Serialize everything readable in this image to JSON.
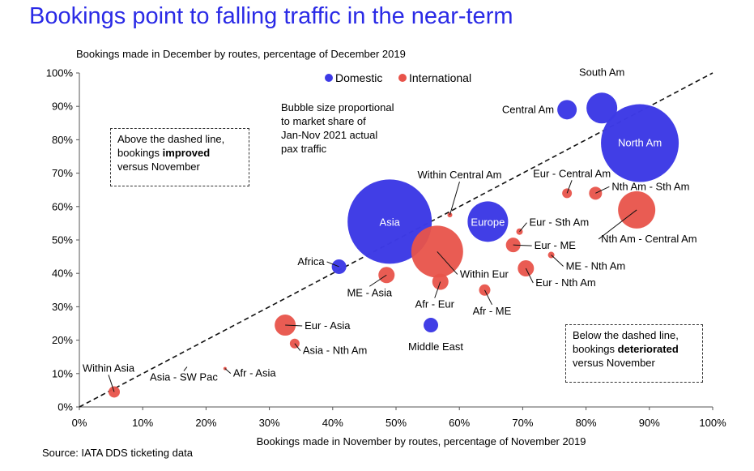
{
  "title": "Bookings point to falling traffic in the near-term",
  "subtitle": "Bookings made in December by routes, percentage of December 2019",
  "source": "Source: IATA DDS ticketing data",
  "colors": {
    "domestic": "#3d3ae6",
    "international": "#e8534a",
    "title": "#2a2ae6"
  },
  "annotations": {
    "bubble_size": [
      "Bubble size proportional",
      "to market share of",
      "Jan-Nov 2021 actual",
      "pax traffic"
    ],
    "above": {
      "line1": "Above the dashed line,",
      "pre": "bookings ",
      "bold": "improved",
      "line3": "versus November"
    },
    "below": {
      "line1": "Below the dashed line,",
      "pre": "bookings ",
      "bold": "deteriorated",
      "line3": "versus November"
    }
  },
  "chart_data": {
    "type": "scatter",
    "xlabel": "Bookings made in November by routes, percentage of November 2019",
    "ylabel": "Bookings made in December by routes, percentage of December 2019",
    "xlim": [
      0,
      100
    ],
    "ylim": [
      0,
      100
    ],
    "xticks": [
      "0%",
      "10%",
      "20%",
      "30%",
      "40%",
      "50%",
      "60%",
      "70%",
      "80%",
      "90%",
      "100%"
    ],
    "yticks": [
      "0%",
      "10%",
      "20%",
      "30%",
      "40%",
      "50%",
      "60%",
      "70%",
      "80%",
      "90%",
      "100%"
    ],
    "reference_line": "y = x (dashed)",
    "legend": [
      {
        "name": "Domestic",
        "color": "#3d3ae6"
      },
      {
        "name": "International",
        "color": "#e8534a"
      }
    ],
    "legend_position": "top-center",
    "points": [
      {
        "label": "South Am",
        "x": 82.5,
        "y": 89.5,
        "category": "Domestic",
        "r": 19
      },
      {
        "label": "Central Am",
        "x": 77,
        "y": 89,
        "category": "Domestic",
        "r": 12
      },
      {
        "label": "North Am",
        "x": 88.5,
        "y": 79,
        "category": "Domestic",
        "r": 48
      },
      {
        "label": "Asia",
        "x": 49,
        "y": 55.5,
        "category": "Domestic",
        "r": 52
      },
      {
        "label": "Europe",
        "x": 64.5,
        "y": 55.5,
        "category": "Domestic",
        "r": 25
      },
      {
        "label": "Africa",
        "x": 41,
        "y": 42,
        "category": "Domestic",
        "r": 9
      },
      {
        "label": "Middle East",
        "x": 55.5,
        "y": 24.5,
        "category": "Domestic",
        "r": 9
      },
      {
        "label": "Eur - Central Am",
        "x": 77,
        "y": 64,
        "category": "International",
        "r": 6
      },
      {
        "label": "Nth Am - Sth Am",
        "x": 81.5,
        "y": 64,
        "category": "International",
        "r": 8
      },
      {
        "label": "Nth Am - Central Am",
        "x": 88,
        "y": 59,
        "category": "International",
        "r": 23
      },
      {
        "label": "Within Central Am",
        "x": 58.5,
        "y": 57.5,
        "category": "International",
        "r": 3
      },
      {
        "label": "Eur - Sth Am",
        "x": 69.5,
        "y": 52.5,
        "category": "International",
        "r": 4
      },
      {
        "label": "Eur - ME",
        "x": 68.5,
        "y": 48.5,
        "category": "International",
        "r": 9
      },
      {
        "label": "Within Eur",
        "x": 56.5,
        "y": 46.5,
        "category": "International",
        "r": 32
      },
      {
        "label": "ME - Nth Am",
        "x": 74.5,
        "y": 45.5,
        "category": "International",
        "r": 4
      },
      {
        "label": "Eur - Nth Am",
        "x": 70.5,
        "y": 41.5,
        "category": "International",
        "r": 10
      },
      {
        "label": "ME - Asia",
        "x": 48.5,
        "y": 39.5,
        "category": "International",
        "r": 10
      },
      {
        "label": "Afr - Eur",
        "x": 57,
        "y": 37.5,
        "category": "International",
        "r": 10
      },
      {
        "label": "Afr - ME",
        "x": 64,
        "y": 35,
        "category": "International",
        "r": 7
      },
      {
        "label": "Eur - Asia",
        "x": 32.5,
        "y": 24.5,
        "category": "International",
        "r": 13
      },
      {
        "label": "Asia - Nth Am",
        "x": 34,
        "y": 19,
        "category": "International",
        "r": 6
      },
      {
        "label": "Afr - Asia",
        "x": 23,
        "y": 11.5,
        "category": "International",
        "r": 2
      },
      {
        "label": "Asia - SW Pac",
        "x": 17,
        "y": 12,
        "category": "International",
        "r": 0
      },
      {
        "label": "Within Asia",
        "x": 5.5,
        "y": 4.5,
        "category": "International",
        "r": 7
      }
    ]
  }
}
